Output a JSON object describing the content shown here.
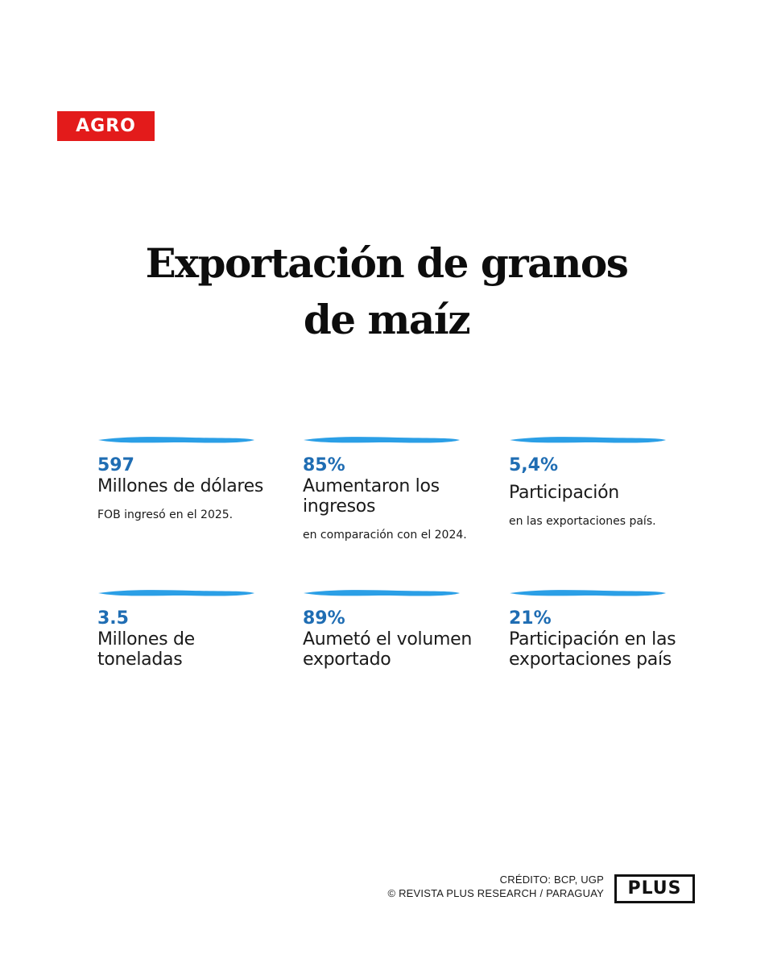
{
  "section_tag": "AGRO",
  "title": {
    "line1": "Exportación de granos",
    "line2": "de maíz"
  },
  "accent_color": "#2b9fe6",
  "value_color": "#1f6db3",
  "tag_color": "#e31b1b",
  "stats": [
    {
      "value": "597",
      "label": "Millones de dólares",
      "note": "FOB ingresó en el 2025."
    },
    {
      "value": "85%",
      "label": "Aumentaron los ingresos",
      "note": "en comparación con el 2024."
    },
    {
      "value": "5,4%",
      "label": "Participación",
      "note": "en las exportaciones país."
    },
    {
      "value": "3.5",
      "label": "Millones de toneladas",
      "note": ""
    },
    {
      "value": "89%",
      "label": "Aumetó el volumen exportado",
      "note": ""
    },
    {
      "value": "21%",
      "label": "Participación en las exportaciones país",
      "note": ""
    }
  ],
  "footer": {
    "credit": "CRÉDITO: BCP, UGP",
    "copyright": "© REVISTA PLUS RESEARCH / PARAGUAY"
  },
  "logo_text": "PLUS"
}
